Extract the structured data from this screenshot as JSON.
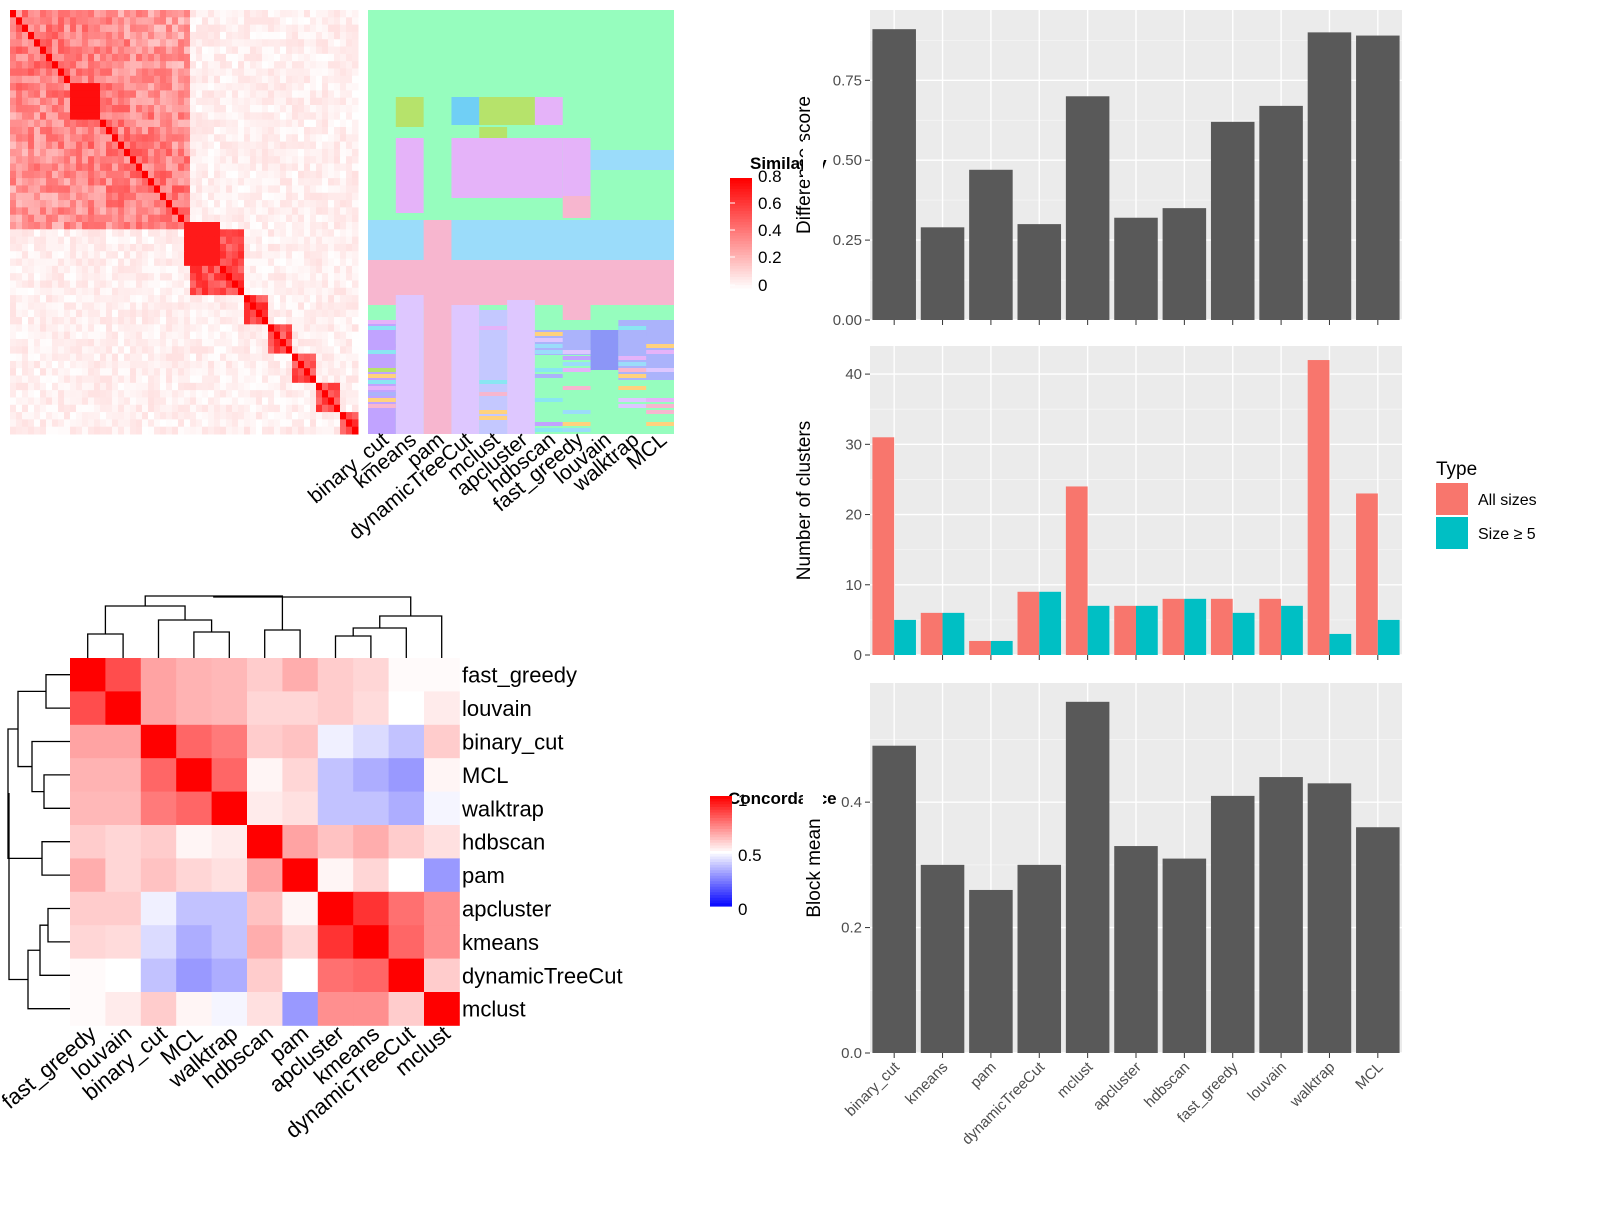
{
  "colors": {
    "panel_bg": "#EBEBEB",
    "grid_major": "#FFFFFF",
    "bar_dark": "#595959",
    "all_sizes": "#F8766D",
    "size_ge5": "#00BFC4",
    "heat_high": "#FF0000",
    "heat_low": "#0000FF"
  },
  "similarity_heatmap": {
    "legend_title": "Similarity",
    "legend_ticks": [
      "0.8",
      "0.6",
      "0.4",
      "0.2",
      "0"
    ],
    "column_labels": [
      "binary_cut",
      "kmeans",
      "pam",
      "dynamicTreeCut",
      "mclust",
      "apcluster",
      "hdbscan",
      "fast_greedy",
      "louvain",
      "walktrap",
      "MCL"
    ]
  },
  "concordance_heatmap": {
    "legend_title": "Concordance",
    "legend_ticks": [
      "1",
      "0.5",
      "0"
    ],
    "row_labels": [
      "fast_greedy",
      "louvain",
      "binary_cut",
      "MCL",
      "walktrap",
      "hdbscan",
      "pam",
      "apcluster",
      "kmeans",
      "dynamicTreeCut",
      "mclust"
    ],
    "column_labels": [
      "fast_greedy",
      "louvain",
      "binary_cut",
      "MCL",
      "walktrap",
      "hdbscan",
      "pam",
      "apcluster",
      "kmeans",
      "dynamicTreeCut",
      "mclust"
    ],
    "matrix": [
      [
        1.0,
        0.85,
        0.68,
        0.65,
        0.64,
        0.6,
        0.66,
        0.6,
        0.58,
        0.51,
        0.51
      ],
      [
        0.85,
        1.0,
        0.68,
        0.65,
        0.64,
        0.58,
        0.58,
        0.6,
        0.57,
        0.5,
        0.54
      ],
      [
        0.68,
        0.68,
        1.0,
        0.8,
        0.76,
        0.6,
        0.62,
        0.47,
        0.43,
        0.38,
        0.6
      ],
      [
        0.65,
        0.65,
        0.8,
        1.0,
        0.8,
        0.52,
        0.58,
        0.38,
        0.34,
        0.3,
        0.52
      ],
      [
        0.64,
        0.64,
        0.76,
        0.8,
        1.0,
        0.54,
        0.56,
        0.38,
        0.38,
        0.34,
        0.48
      ],
      [
        0.6,
        0.58,
        0.6,
        0.52,
        0.54,
        1.0,
        0.68,
        0.62,
        0.66,
        0.6,
        0.56
      ],
      [
        0.66,
        0.58,
        0.62,
        0.58,
        0.56,
        0.68,
        1.0,
        0.52,
        0.58,
        0.5,
        0.3
      ],
      [
        0.6,
        0.6,
        0.47,
        0.38,
        0.38,
        0.62,
        0.52,
        1.0,
        0.9,
        0.78,
        0.72
      ],
      [
        0.58,
        0.57,
        0.43,
        0.34,
        0.38,
        0.66,
        0.58,
        0.9,
        1.0,
        0.8,
        0.72
      ],
      [
        0.51,
        0.5,
        0.38,
        0.3,
        0.34,
        0.6,
        0.5,
        0.78,
        0.8,
        1.0,
        0.6
      ],
      [
        0.51,
        0.54,
        0.6,
        0.52,
        0.48,
        0.56,
        0.3,
        0.72,
        0.72,
        0.6,
        1.0
      ]
    ]
  },
  "chart_data": [
    {
      "type": "bar",
      "ylabel": "Difference score",
      "categories": [
        "binary_cut",
        "kmeans",
        "pam",
        "dynamicTreeCut",
        "mclust",
        "apcluster",
        "hdbscan",
        "fast_greedy",
        "louvain",
        "walktrap",
        "MCL"
      ],
      "values": [
        0.91,
        0.29,
        0.47,
        0.3,
        0.7,
        0.32,
        0.35,
        0.62,
        0.67,
        0.9,
        0.89
      ],
      "yticks": [
        "0.00",
        "0.25",
        "0.50",
        "0.75"
      ],
      "ylim": [
        0,
        0.97
      ]
    },
    {
      "type": "bar",
      "ylabel": "Number of clusters",
      "categories": [
        "binary_cut",
        "kmeans",
        "pam",
        "dynamicTreeCut",
        "mclust",
        "apcluster",
        "hdbscan",
        "fast_greedy",
        "louvain",
        "walktrap",
        "MCL"
      ],
      "series": [
        {
          "name": "All sizes",
          "values": [
            31,
            6,
            2,
            9,
            24,
            7,
            8,
            8,
            8,
            42,
            23
          ]
        },
        {
          "name": "Size ≥ 5",
          "values": [
            5,
            6,
            2,
            9,
            7,
            7,
            8,
            6,
            7,
            3,
            5
          ]
        }
      ],
      "yticks": [
        "0",
        "10",
        "20",
        "30",
        "40"
      ],
      "ylim": [
        0,
        44
      ],
      "legend": {
        "title": "Type",
        "position": "right"
      }
    },
    {
      "type": "bar",
      "ylabel": "Block mean",
      "categories": [
        "binary_cut",
        "kmeans",
        "pam",
        "dynamicTreeCut",
        "mclust",
        "apcluster",
        "hdbscan",
        "fast_greedy",
        "louvain",
        "walktrap",
        "MCL"
      ],
      "values": [
        0.49,
        0.3,
        0.26,
        0.3,
        0.56,
        0.33,
        0.31,
        0.41,
        0.44,
        0.43,
        0.36
      ],
      "yticks": [
        "0.0",
        "0.2",
        "0.4"
      ],
      "ylim": [
        0,
        0.59
      ]
    }
  ]
}
